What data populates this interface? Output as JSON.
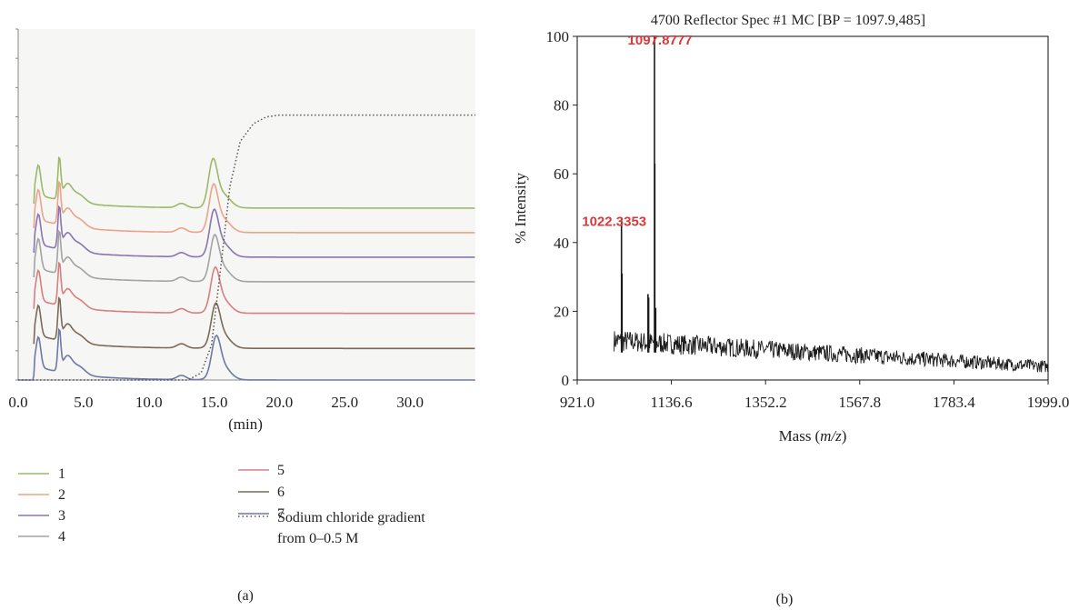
{
  "chart_data": [
    {
      "panel_label": "(a)",
      "type": "line",
      "xlabel": "(min)",
      "ylabel": "",
      "xlim": [
        0,
        35
      ],
      "ylim": [
        0,
        1
      ],
      "grid": false,
      "x_ticks": [
        "0.0",
        "5.0",
        "10.0",
        "15.0",
        "20.0",
        "25.0",
        "30.0"
      ],
      "x_tick_values": [
        0,
        5,
        10,
        15,
        20,
        25,
        30
      ],
      "legend_position": "bottom",
      "series": [
        {
          "name": "1",
          "color": "#9cb86a",
          "baseline": 0.49,
          "line_style": "solid"
        },
        {
          "name": "2",
          "color": "#eba38a",
          "baseline": 0.42,
          "line_style": "solid"
        },
        {
          "name": "3",
          "color": "#8a75b3",
          "baseline": 0.35,
          "line_style": "solid"
        },
        {
          "name": "4",
          "color": "#a3a3a3",
          "baseline": 0.28,
          "line_style": "solid"
        },
        {
          "name": "5",
          "color": "#d87e80",
          "baseline": 0.19,
          "line_style": "solid"
        },
        {
          "name": "6",
          "color": "#7c6a58",
          "baseline": 0.09,
          "line_style": "solid"
        },
        {
          "name": "7",
          "color": "#6f78a6",
          "baseline": 0.0,
          "line_style": "solid"
        },
        {
          "name": "Sodium chloride gradient from 0–0.5 M",
          "color": "#555555",
          "line_style": "dotted",
          "x": [
            0,
            13.0,
            14.0,
            14.8,
            15.5,
            16.2,
            17.0,
            18.0,
            19.0,
            20.0,
            25.0,
            30.0,
            35.0
          ],
          "y": [
            0,
            0,
            0.02,
            0.1,
            0.32,
            0.55,
            0.68,
            0.73,
            0.75,
            0.755,
            0.755,
            0.755,
            0.755
          ]
        }
      ],
      "legend": {
        "left": [
          "1",
          "2",
          "3",
          "4"
        ],
        "right": [
          "5",
          "6",
          "7"
        ],
        "gradient_label_line1": "Sodium chloride gradient",
        "gradient_label_line2": "from 0–0.5 M"
      }
    },
    {
      "panel_label": "(b)",
      "type": "line",
      "title": "4700 Reflector Spec #1 MC [BP = 1097.9,485]",
      "xlabel": "Mass",
      "xlabel_var": "m/z",
      "ylabel": "% Intensity",
      "xlim": [
        921.0,
        1999.0
      ],
      "ylim": [
        0,
        100
      ],
      "x_ticks": [
        "921.0",
        "1136.6",
        "1352.2",
        "1567.8",
        "1783.4",
        "1999.0"
      ],
      "x_tick_values": [
        921.0,
        1136.6,
        1352.2,
        1567.8,
        1783.4,
        1999.0
      ],
      "y_ticks": [
        "0",
        "20",
        "40",
        "60",
        "80",
        "100"
      ],
      "y_tick_values": [
        0,
        20,
        40,
        60,
        80,
        100
      ],
      "color": "#1a1a1a",
      "peaks": [
        {
          "x": 1022.3353,
          "y": 47
        },
        {
          "x": 1083.0,
          "y": 25
        },
        {
          "x": 1097.8777,
          "y": 100
        }
      ],
      "annotations": [
        {
          "label": "1097.8777",
          "x": 1097.8777,
          "y": 100,
          "color": "#d9393b"
        },
        {
          "label": "1022.3353",
          "x": 1022.3353,
          "y": 47,
          "color": "#d9393b"
        }
      ]
    }
  ]
}
